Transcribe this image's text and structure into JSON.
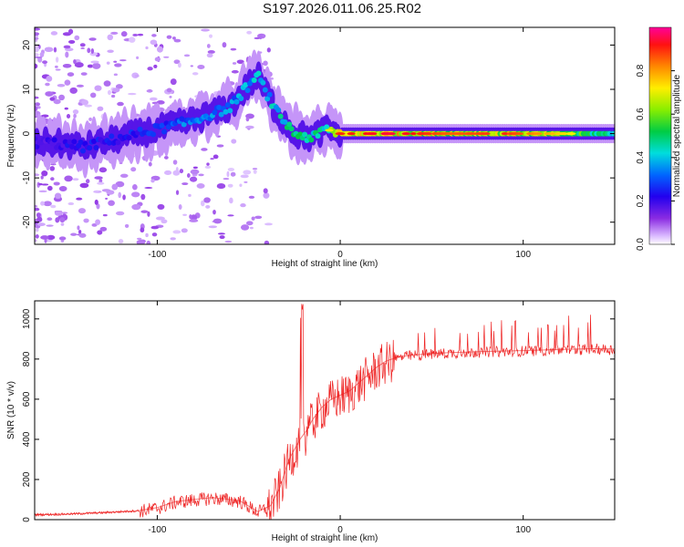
{
  "title": "S197.2026.011.06.25.R02",
  "chart_data": [
    {
      "type": "heatmap",
      "xlabel": "Height of straight line (km)",
      "ylabel": "Frequency (Hz)",
      "xlim": [
        -167,
        150
      ],
      "ylim": [
        -25,
        24
      ],
      "x_ticks": [
        -100,
        0,
        100
      ],
      "y_ticks": [
        -20,
        -10,
        0,
        10,
        20
      ],
      "colorbar": {
        "label": "Normalized spectral amplitude",
        "range": [
          0.0,
          1.0
        ],
        "ticks": [
          0.0,
          0.2,
          0.4,
          0.6,
          0.8
        ]
      },
      "ridge": {
        "description_points_x": [
          -160,
          -140,
          -120,
          -100,
          -80,
          -60,
          -50,
          -45,
          -35,
          -25,
          -15,
          -8,
          0,
          30,
          60,
          90,
          150
        ],
        "frequency_hz": [
          -2,
          -3,
          -1,
          1,
          3,
          6,
          11,
          13,
          5,
          0,
          -1,
          1,
          0,
          0,
          0,
          0,
          0
        ],
        "amplitude": [
          0.25,
          0.3,
          0.3,
          0.35,
          0.45,
          0.45,
          0.5,
          0.5,
          0.55,
          0.6,
          0.6,
          0.65,
          0.9,
          0.95,
          0.85,
          0.9,
          0.6
        ]
      }
    },
    {
      "type": "line",
      "xlabel": "Height of straight line (km)",
      "ylabel": "SNR (10 * v/v)",
      "xlim": [
        -167,
        150
      ],
      "ylim": [
        0,
        1090
      ],
      "x_ticks": [
        -100,
        0,
        100
      ],
      "y_ticks": [
        0,
        200,
        400,
        600,
        800,
        1000
      ],
      "color": "#ee2222",
      "series": [
        {
          "name": "SNR",
          "x": [
            -167,
            -150,
            -130,
            -110,
            -100,
            -90,
            -70,
            -55,
            -45,
            -38,
            -33,
            -28,
            -22,
            -18,
            -15,
            -10,
            -5,
            0,
            5,
            10,
            15,
            20,
            25,
            30,
            35,
            40,
            50,
            60,
            70,
            80,
            90,
            100,
            110,
            120,
            130,
            140,
            150
          ],
          "values": [
            25,
            28,
            35,
            45,
            60,
            90,
            110,
            95,
            40,
            70,
            160,
            300,
            400,
            450,
            500,
            560,
            600,
            620,
            640,
            680,
            720,
            760,
            790,
            805,
            815,
            820,
            828,
            832,
            835,
            838,
            840,
            842,
            845,
            848,
            850,
            852,
            850
          ]
        }
      ]
    }
  ]
}
